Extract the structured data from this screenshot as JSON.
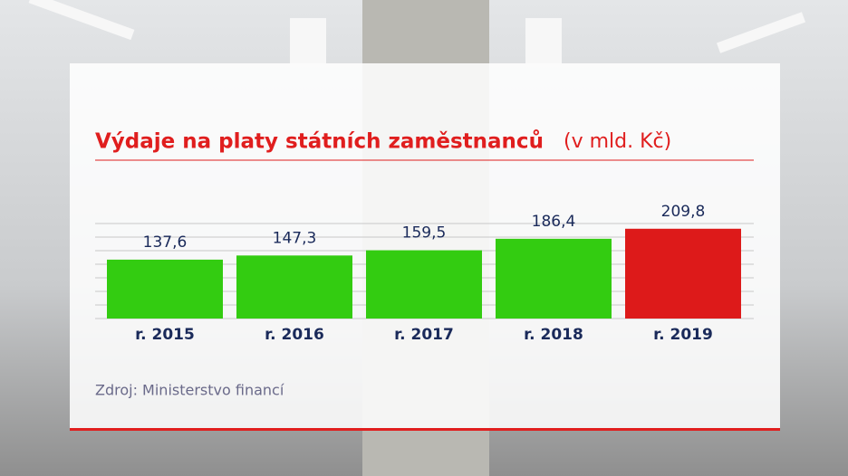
{
  "chart_data": {
    "type": "bar",
    "title": "Výdaje na platy státních zaměstnanců",
    "subtitle": "(v mld. Kč)",
    "categories": [
      "r. 2015",
      "r. 2016",
      "r. 2017",
      "r. 2018",
      "r. 2019"
    ],
    "values": [
      137.6,
      147.3,
      159.5,
      186.4,
      209.8
    ],
    "value_labels": [
      "137,6",
      "147,3",
      "159,5",
      "186,4",
      "209,8"
    ],
    "colors": [
      "#33cc11",
      "#33cc11",
      "#33cc11",
      "#33cc11",
      "#dd1a1a"
    ],
    "ylim": [
      0,
      222
    ],
    "grid": true,
    "source": "Zdroj: Ministerstvo financí"
  }
}
